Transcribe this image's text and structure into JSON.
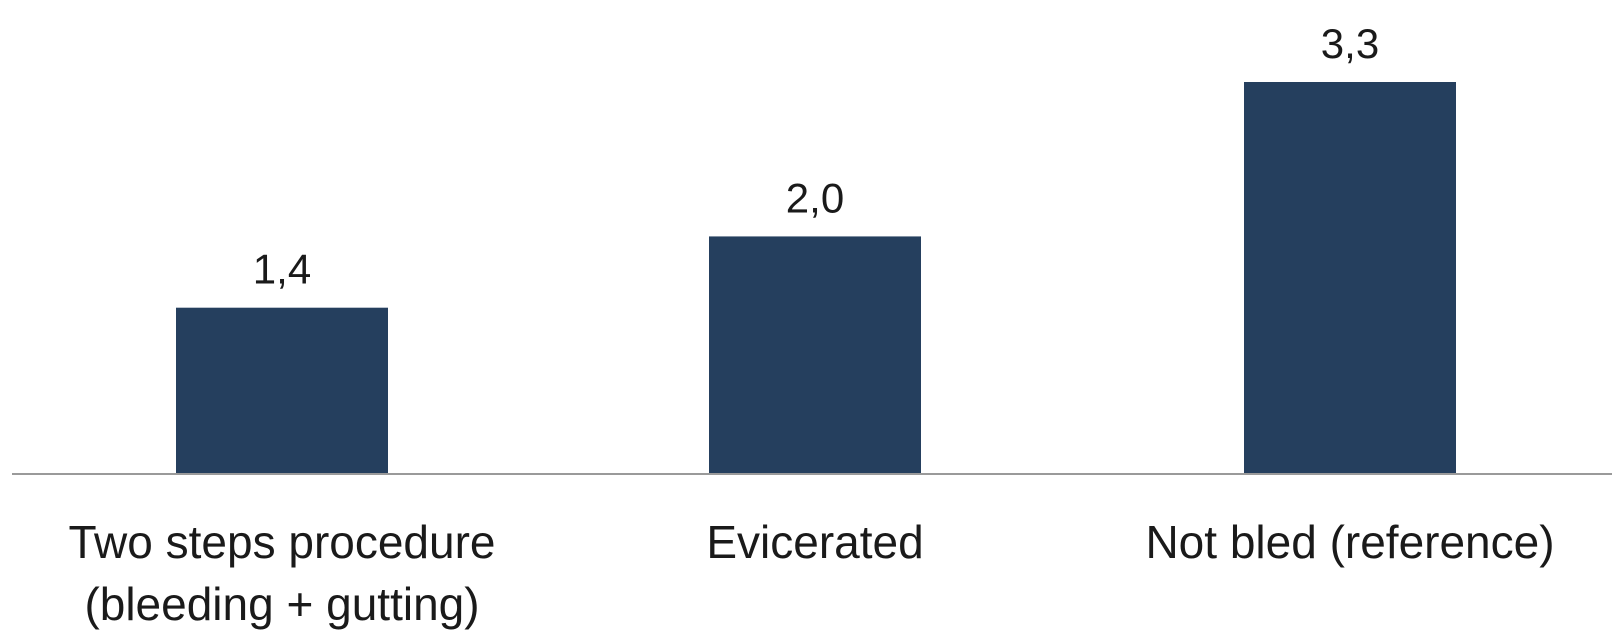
{
  "chart_data": {
    "type": "bar",
    "title": "",
    "xlabel": "",
    "ylabel": "",
    "categories": [
      [
        "Two steps procedure",
        "(bleeding + gutting)"
      ],
      [
        "Evicerated"
      ],
      [
        "Not bled (reference)"
      ]
    ],
    "values": [
      1.4,
      2.0,
      3.3
    ],
    "value_labels": [
      "1,4",
      "2,0",
      "3,3"
    ],
    "ylim": [
      0,
      3.3
    ],
    "grid": false,
    "legend": "none",
    "bar_color": "#253f5e"
  }
}
